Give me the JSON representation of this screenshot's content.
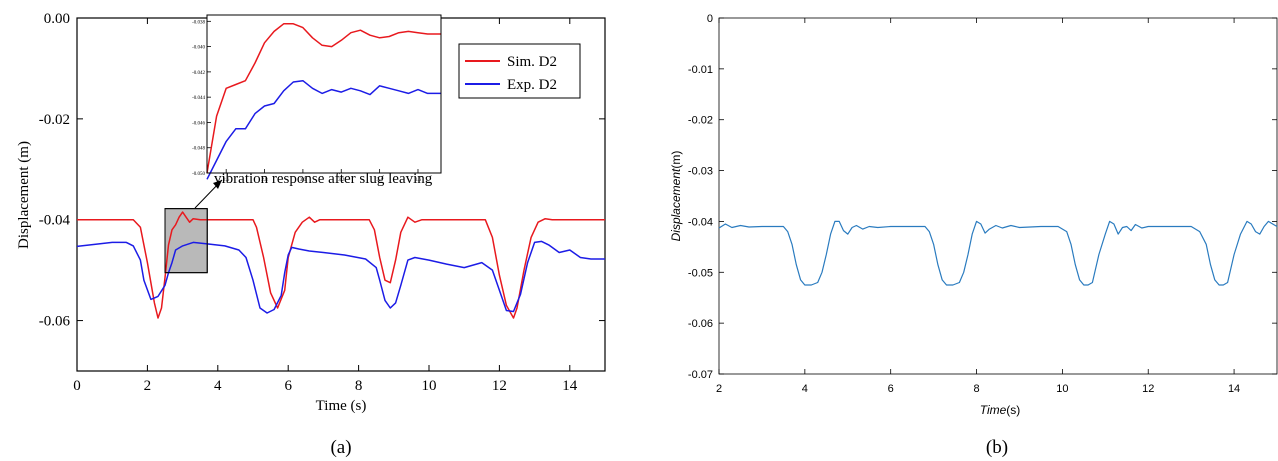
{
  "colors": {
    "sim": "#e8191e",
    "exp": "#1c1ce6",
    "b_line": "#2a7bbf",
    "zoom_fill": "#b9b9b9"
  },
  "chart_data": [
    {
      "id": "a",
      "type": "line",
      "panel_label": "(a)",
      "xlabel": "Time (s)",
      "ylabel": "Displacement (m)",
      "xlim": [
        0,
        15
      ],
      "ylim": [
        -0.07,
        0.0
      ],
      "x_ticks": [
        "0",
        "2",
        "4",
        "6",
        "8",
        "10",
        "12",
        "14"
      ],
      "y_ticks": [
        "0.00",
        "-0.02",
        "-0.04",
        "-0.06"
      ],
      "legend": {
        "placement": "top-right",
        "entries": [
          "Sim. D2",
          "Exp. D2"
        ]
      },
      "annotation": "vibration response after slug leaving",
      "zoom_box": {
        "x": [
          2.5,
          3.7
        ],
        "y": [
          -0.0378,
          -0.0505
        ]
      },
      "series": [
        {
          "name": "Sim. D2",
          "color_key": "sim",
          "x": [
            0,
            1.6,
            1.8,
            2.0,
            2.2,
            2.3,
            2.4,
            2.5,
            2.6,
            2.7,
            2.8,
            2.9,
            3.0,
            3.1,
            3.2,
            3.3,
            3.5,
            3.7,
            5.0,
            5.1,
            5.3,
            5.5,
            5.7,
            5.9,
            6.0,
            6.2,
            6.4,
            6.6,
            6.75,
            6.9,
            7.1,
            8.3,
            8.45,
            8.6,
            8.75,
            8.9,
            9.05,
            9.2,
            9.4,
            9.6,
            9.8,
            11.6,
            11.8,
            12.0,
            12.2,
            12.4,
            12.5,
            12.7,
            12.9,
            13.1,
            13.3,
            13.5,
            15
          ],
          "y": [
            -0.04,
            -0.04,
            -0.0415,
            -0.0485,
            -0.0565,
            -0.0595,
            -0.0575,
            -0.0515,
            -0.045,
            -0.042,
            -0.041,
            -0.0395,
            -0.0385,
            -0.0395,
            -0.0405,
            -0.0398,
            -0.04,
            -0.04,
            -0.04,
            -0.0415,
            -0.0475,
            -0.0545,
            -0.0575,
            -0.054,
            -0.0475,
            -0.0425,
            -0.0405,
            -0.0395,
            -0.0405,
            -0.04,
            -0.04,
            -0.04,
            -0.042,
            -0.0475,
            -0.052,
            -0.0525,
            -0.048,
            -0.0425,
            -0.0395,
            -0.0405,
            -0.04,
            -0.04,
            -0.0435,
            -0.051,
            -0.057,
            -0.0595,
            -0.0575,
            -0.05,
            -0.0435,
            -0.0405,
            -0.0398,
            -0.04,
            -0.04
          ]
        },
        {
          "name": "Exp. D2",
          "color_key": "exp",
          "x": [
            0,
            1.0,
            1.4,
            1.6,
            1.8,
            1.9,
            2.1,
            2.3,
            2.5,
            2.6,
            2.7,
            2.8,
            3.0,
            3.3,
            3.7,
            4.2,
            4.6,
            4.8,
            5.0,
            5.2,
            5.4,
            5.6,
            5.8,
            5.9,
            6.0,
            6.1,
            6.3,
            6.6,
            7.0,
            7.6,
            8.2,
            8.5,
            8.6,
            8.75,
            8.9,
            9.05,
            9.2,
            9.4,
            9.6,
            10.0,
            10.5,
            11.0,
            11.5,
            11.8,
            12.0,
            12.2,
            12.4,
            12.6,
            12.8,
            13.0,
            13.2,
            13.4,
            13.7,
            14.0,
            14.3,
            14.6,
            15
          ],
          "y": [
            -0.0453,
            -0.0445,
            -0.0445,
            -0.0452,
            -0.048,
            -0.052,
            -0.0558,
            -0.0552,
            -0.053,
            -0.0505,
            -0.0485,
            -0.046,
            -0.0452,
            -0.0445,
            -0.0448,
            -0.0452,
            -0.046,
            -0.0475,
            -0.052,
            -0.0575,
            -0.0585,
            -0.0578,
            -0.055,
            -0.0505,
            -0.047,
            -0.0455,
            -0.0458,
            -0.0462,
            -0.0465,
            -0.047,
            -0.0478,
            -0.0495,
            -0.052,
            -0.056,
            -0.0575,
            -0.0565,
            -0.053,
            -0.048,
            -0.0475,
            -0.048,
            -0.0488,
            -0.0495,
            -0.0485,
            -0.05,
            -0.054,
            -0.058,
            -0.0582,
            -0.0548,
            -0.0485,
            -0.0445,
            -0.0443,
            -0.045,
            -0.0465,
            -0.046,
            -0.0475,
            -0.0478,
            -0.0478
          ]
        }
      ],
      "inset": {
        "xlim": [
          2.5,
          3.72
        ],
        "ylim": [
          -0.05,
          -0.0375
        ],
        "x_ticks": [
          "2.6",
          "2.8",
          "3.0",
          "3.2",
          "3.4",
          "3.6"
        ],
        "y_ticks": [
          "-0.038",
          "-0.040",
          "-0.042",
          "-0.044",
          "-0.046",
          "-0.048",
          "-0.050"
        ],
        "series": [
          {
            "name": "Sim. D2",
            "color_key": "sim",
            "x": [
              2.5,
              2.55,
              2.6,
              2.65,
              2.7,
              2.75,
              2.8,
              2.85,
              2.9,
              2.95,
              3.0,
              3.05,
              3.1,
              3.15,
              3.2,
              3.25,
              3.3,
              3.35,
              3.4,
              3.45,
              3.5,
              3.55,
              3.6,
              3.65,
              3.72
            ],
            "y": [
              -0.05,
              -0.0455,
              -0.0433,
              -0.043,
              -0.0427,
              -0.0413,
              -0.0397,
              -0.0388,
              -0.0382,
              -0.0382,
              -0.0385,
              -0.0393,
              -0.0399,
              -0.04,
              -0.0395,
              -0.0389,
              -0.0387,
              -0.0391,
              -0.0393,
              -0.0392,
              -0.0389,
              -0.0388,
              -0.0389,
              -0.039,
              -0.039
            ]
          },
          {
            "name": "Exp. D2",
            "color_key": "exp",
            "x": [
              2.5,
              2.55,
              2.6,
              2.65,
              2.7,
              2.75,
              2.8,
              2.85,
              2.9,
              2.95,
              3.0,
              3.05,
              3.1,
              3.15,
              3.2,
              3.25,
              3.3,
              3.35,
              3.4,
              3.45,
              3.5,
              3.55,
              3.6,
              3.65,
              3.72
            ],
            "y": [
              -0.0505,
              -0.049,
              -0.0475,
              -0.0465,
              -0.0465,
              -0.0453,
              -0.0447,
              -0.0445,
              -0.0435,
              -0.0428,
              -0.0427,
              -0.0433,
              -0.0437,
              -0.0434,
              -0.0436,
              -0.0433,
              -0.0435,
              -0.0438,
              -0.0431,
              -0.0433,
              -0.0435,
              -0.0437,
              -0.0434,
              -0.0437,
              -0.0437
            ]
          }
        ]
      }
    },
    {
      "id": "b",
      "type": "line",
      "panel_label": "(b)",
      "xlabel_italic": "Time",
      "xlabel_unit": "(s)",
      "ylabel_italic": "Displacement",
      "ylabel_unit": "(m)",
      "xlim": [
        2,
        15
      ],
      "ylim": [
        -0.07,
        0.0
      ],
      "x_ticks": [
        "2",
        "4",
        "6",
        "8",
        "10",
        "12",
        "14"
      ],
      "y_ticks": [
        "0",
        "-0.01",
        "-0.02",
        "-0.03",
        "-0.04",
        "-0.05",
        "-0.06",
        "-0.07"
      ],
      "series": [
        {
          "color_key": "b_line",
          "x": [
            2.0,
            2.15,
            2.3,
            2.5,
            2.7,
            3.0,
            3.3,
            3.5,
            3.6,
            3.7,
            3.8,
            3.9,
            4.0,
            4.15,
            4.3,
            4.4,
            4.5,
            4.6,
            4.7,
            4.8,
            4.9,
            5.0,
            5.1,
            5.2,
            5.35,
            5.5,
            5.7,
            6.0,
            6.5,
            6.8,
            6.9,
            7.0,
            7.1,
            7.2,
            7.3,
            7.45,
            7.6,
            7.7,
            7.8,
            7.9,
            8.0,
            8.1,
            8.2,
            8.3,
            8.45,
            8.6,
            8.8,
            9.0,
            9.5,
            9.9,
            10.1,
            10.2,
            10.3,
            10.4,
            10.5,
            10.6,
            10.7,
            10.85,
            11.0,
            11.1,
            11.2,
            11.3,
            11.4,
            11.5,
            11.6,
            11.7,
            11.85,
            12.0,
            12.2,
            12.5,
            13.0,
            13.2,
            13.35,
            13.45,
            13.55,
            13.65,
            13.75,
            13.85,
            14.0,
            14.15,
            14.3,
            14.4,
            14.5,
            14.6,
            14.7,
            14.8,
            14.9,
            15.0
          ],
          "y": [
            -0.0413,
            -0.0405,
            -0.0412,
            -0.0408,
            -0.0411,
            -0.041,
            -0.041,
            -0.041,
            -0.042,
            -0.0445,
            -0.0485,
            -0.0515,
            -0.0525,
            -0.0525,
            -0.052,
            -0.05,
            -0.0465,
            -0.0425,
            -0.04,
            -0.04,
            -0.0418,
            -0.0425,
            -0.0412,
            -0.0408,
            -0.0415,
            -0.041,
            -0.0412,
            -0.041,
            -0.041,
            -0.041,
            -0.042,
            -0.0445,
            -0.0485,
            -0.0515,
            -0.0525,
            -0.0525,
            -0.052,
            -0.05,
            -0.0465,
            -0.0425,
            -0.04,
            -0.0405,
            -0.0423,
            -0.0415,
            -0.0408,
            -0.0413,
            -0.0408,
            -0.0412,
            -0.041,
            -0.041,
            -0.042,
            -0.0445,
            -0.0485,
            -0.0515,
            -0.0525,
            -0.0525,
            -0.052,
            -0.0465,
            -0.0425,
            -0.04,
            -0.0405,
            -0.0425,
            -0.0412,
            -0.041,
            -0.0418,
            -0.0406,
            -0.0413,
            -0.041,
            -0.041,
            -0.041,
            -0.041,
            -0.042,
            -0.0445,
            -0.0485,
            -0.0515,
            -0.0525,
            -0.0525,
            -0.052,
            -0.0465,
            -0.0425,
            -0.04,
            -0.0405,
            -0.042,
            -0.0425,
            -0.041,
            -0.04,
            -0.0405,
            -0.041
          ]
        }
      ]
    }
  ]
}
